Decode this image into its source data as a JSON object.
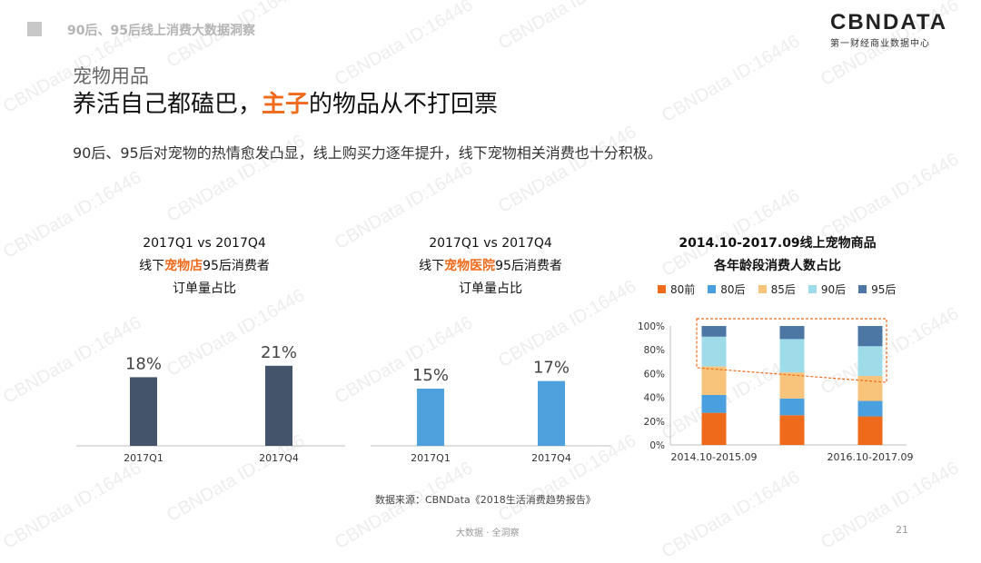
{
  "header": {
    "title": "90后、95后线上消费大数据洞察"
  },
  "logo": {
    "main": "CBNDATA",
    "sub": "第一财经商业数据中心"
  },
  "section_label": "宠物用品",
  "headline": {
    "part1": "养活自己都磕巴，",
    "highlight": "主子",
    "part2": "的物品从不打回票"
  },
  "subtitle": "90后、95后对宠物的热情愈发凸显，线上购买力逐年提升，线下宠物相关消费也十分积极。",
  "chart_titles": [
    {
      "line1": "2017Q1 vs 2017Q4",
      "line2_pre": "线下",
      "line2_hl": "宠物店",
      "line2_post": "95后消费者",
      "line3": "订单量占比"
    },
    {
      "line1": "2017Q1 vs 2017Q4",
      "line2_pre": "线下",
      "line2_hl": "宠物医院",
      "line2_post": "95后消费者",
      "line3": "订单量占比"
    },
    {
      "line1": "2014.10-2017.09线上宠物商品",
      "line2": "各年龄段消费人数占比"
    }
  ],
  "chart_data": [
    {
      "type": "bar",
      "categories": [
        "2017Q1",
        "2017Q4"
      ],
      "values": [
        18,
        21
      ],
      "value_labels": [
        "18%",
        "21%"
      ],
      "color": "#44546a"
    },
    {
      "type": "bar",
      "categories": [
        "2017Q1",
        "2017Q4"
      ],
      "values": [
        15,
        17
      ],
      "value_labels": [
        "15%",
        "17%"
      ],
      "color": "#4ea1dd"
    },
    {
      "type": "bar",
      "stacked": true,
      "categories": [
        "2014.10-2015.09",
        "",
        "2016.10-2017.09"
      ],
      "ylim": [
        0,
        100
      ],
      "yticks": [
        "0%",
        "20%",
        "40%",
        "60%",
        "80%",
        "100%"
      ],
      "series": [
        {
          "name": "80前",
          "color": "#ef6a1b",
          "values": [
            27,
            25,
            24
          ]
        },
        {
          "name": "80后",
          "color": "#4a9fde",
          "values": [
            15,
            14,
            13
          ]
        },
        {
          "name": "85后",
          "color": "#f8c47c",
          "values": [
            24,
            22,
            21
          ]
        },
        {
          "name": "90后",
          "color": "#9fdcea",
          "values": [
            25,
            28,
            25
          ]
        },
        {
          "name": "95后",
          "color": "#4c77a5",
          "values": [
            9,
            11,
            17
          ]
        }
      ],
      "legend_position": "top"
    }
  ],
  "source": "数据来源：CBNData《2018生活消费趋势报告》",
  "footer": "大数据 · 全洞察",
  "page_number": "21",
  "watermark": "CBNData ID:16446"
}
